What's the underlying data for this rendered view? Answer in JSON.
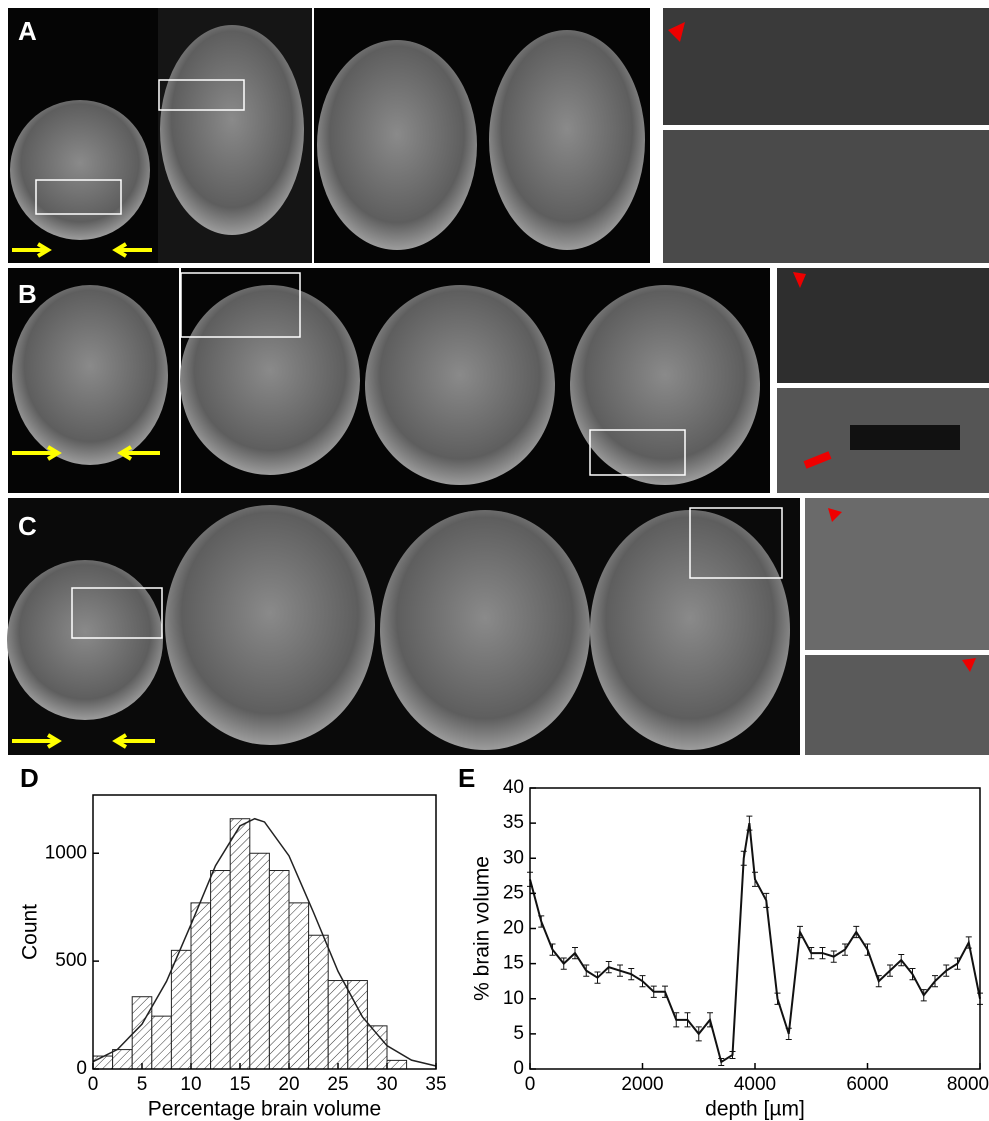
{
  "panel_labels": [
    "A",
    "B",
    "C"
  ],
  "chart_data": [
    {
      "type": "histogram",
      "panel": "D",
      "xlabel": "Percentage brain volume",
      "ylabel": "Count",
      "bins": [
        0,
        2,
        4,
        6,
        8,
        10,
        12,
        14,
        16,
        18,
        20,
        22,
        24,
        26,
        28,
        30,
        32
      ],
      "values": [
        60,
        90,
        335,
        245,
        550,
        770,
        920,
        1160,
        1000,
        920,
        770,
        620,
        410,
        410,
        200,
        40
      ],
      "color": "#222222",
      "fit": {
        "x": [
          0,
          2.5,
          5,
          7.5,
          10,
          12.5,
          15,
          16.5,
          17.5,
          20,
          22.5,
          25,
          27.5,
          30,
          32.5,
          35
        ],
        "values": [
          34,
          91,
          208,
          406,
          670,
          942,
          1127,
          1160,
          1145,
          988,
          726,
          453,
          241,
          108,
          41,
          14
        ]
      },
      "xlim": [
        0,
        35
      ],
      "xticks": [
        0,
        5,
        10,
        15,
        20,
        25,
        30,
        35
      ],
      "ylim": [
        0,
        1270
      ],
      "yticks": [
        0,
        500,
        1000
      ]
    },
    {
      "type": "line",
      "panel": "E",
      "xlabel": "depth [µm]",
      "ylabel": "% brain volume",
      "x": [
        0,
        200,
        400,
        600,
        800,
        1000,
        1200,
        1400,
        1600,
        1800,
        2000,
        2200,
        2400,
        2600,
        2800,
        3000,
        3200,
        3400,
        3600,
        3800,
        3900,
        4000,
        4200,
        4400,
        4600,
        4800,
        5000,
        5200,
        5400,
        5600,
        5800,
        6000,
        6200,
        6400,
        6600,
        6800,
        7000,
        7200,
        7400,
        7600,
        7800,
        8000
      ],
      "values": [
        27,
        21,
        17,
        15,
        16.5,
        14,
        13,
        14.5,
        14,
        13.5,
        12.5,
        11,
        11,
        7,
        7,
        5,
        7,
        1,
        2,
        30,
        35,
        27,
        24,
        10,
        5,
        19.5,
        16.5,
        16.5,
        16,
        17,
        19.5,
        17,
        12.5,
        14,
        15.5,
        13.5,
        10.5,
        12.5,
        14,
        15,
        18,
        10
      ],
      "errors": [
        1,
        0.8,
        0.8,
        0.8,
        0.8,
        0.8,
        0.8,
        0.8,
        0.8,
        0.8,
        0.8,
        0.8,
        0.8,
        1,
        1,
        1,
        1,
        0.5,
        0.5,
        1,
        1,
        1,
        1,
        0.8,
        0.8,
        0.8,
        0.8,
        0.8,
        0.8,
        0.8,
        0.8,
        0.8,
        0.8,
        0.8,
        0.8,
        0.8,
        0.8,
        0.8,
        0.8,
        0.8,
        0.8,
        0.8
      ],
      "color": "#111111",
      "xlim": [
        0,
        8000
      ],
      "xticks": [
        0,
        2000,
        4000,
        6000,
        8000
      ],
      "ylim": [
        0,
        40
      ],
      "yticks": [
        0,
        5,
        10,
        15,
        20,
        25,
        30,
        35,
        40
      ]
    }
  ]
}
